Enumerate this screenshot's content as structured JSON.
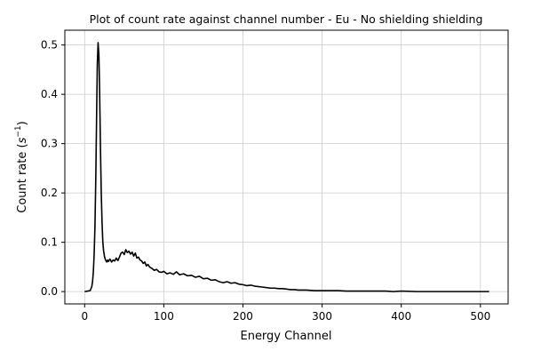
{
  "chart_data": {
    "type": "line",
    "title": "Plot of count rate against channel number - Eu - No shielding shielding",
    "xlabel": "Energy Channel",
    "ylabel_main": "Count rate (",
    "ylabel_unit_base": "s",
    "ylabel_unit_exp": "−1",
    "ylabel_close": ")",
    "xlim": [
      -25,
      535
    ],
    "ylim": [
      -0.025,
      0.53
    ],
    "xticks": [
      0,
      100,
      200,
      300,
      400,
      500
    ],
    "xtick_labels": [
      "0",
      "100",
      "200",
      "300",
      "400",
      "500"
    ],
    "yticks": [
      0.0,
      0.1,
      0.2,
      0.3,
      0.4,
      0.5
    ],
    "ytick_labels": [
      "0.0",
      "0.1",
      "0.2",
      "0.3",
      "0.4",
      "0.5"
    ],
    "grid": true,
    "line_color": "#000000",
    "grid_color": "#cccccc",
    "series": [
      {
        "x": [
          0,
          4,
          7,
          9,
          10,
          11,
          12,
          13,
          14,
          15,
          16,
          17,
          18,
          19,
          20,
          21,
          22,
          23,
          24,
          25,
          26,
          27,
          28,
          29,
          30,
          32,
          34,
          36,
          38,
          40,
          42,
          44,
          46,
          48,
          50,
          52,
          54,
          56,
          58,
          60,
          62,
          64,
          66,
          68,
          70,
          72,
          74,
          76,
          78,
          80,
          82,
          85,
          88,
          91,
          94,
          97,
          100,
          104,
          108,
          112,
          116,
          120,
          125,
          130,
          135,
          140,
          145,
          150,
          155,
          160,
          165,
          170,
          175,
          180,
          185,
          190,
          195,
          200,
          205,
          210,
          215,
          220,
          225,
          230,
          235,
          240,
          245,
          250,
          255,
          260,
          265,
          270,
          280,
          290,
          300,
          310,
          320,
          330,
          340,
          350,
          360,
          370,
          380,
          390,
          400,
          420,
          440,
          460,
          480,
          500,
          511
        ],
        "y": [
          0.0,
          0.001,
          0.002,
          0.01,
          0.02,
          0.04,
          0.075,
          0.13,
          0.22,
          0.34,
          0.46,
          0.505,
          0.48,
          0.4,
          0.29,
          0.2,
          0.14,
          0.1,
          0.082,
          0.072,
          0.066,
          0.062,
          0.06,
          0.064,
          0.061,
          0.066,
          0.06,
          0.064,
          0.062,
          0.068,
          0.063,
          0.07,
          0.078,
          0.08,
          0.075,
          0.085,
          0.079,
          0.082,
          0.076,
          0.08,
          0.072,
          0.078,
          0.068,
          0.07,
          0.064,
          0.062,
          0.057,
          0.06,
          0.052,
          0.055,
          0.05,
          0.047,
          0.043,
          0.045,
          0.04,
          0.039,
          0.041,
          0.036,
          0.038,
          0.035,
          0.04,
          0.034,
          0.036,
          0.032,
          0.033,
          0.029,
          0.031,
          0.026,
          0.027,
          0.023,
          0.024,
          0.02,
          0.018,
          0.02,
          0.017,
          0.018,
          0.015,
          0.014,
          0.012,
          0.013,
          0.011,
          0.01,
          0.009,
          0.008,
          0.007,
          0.007,
          0.006,
          0.006,
          0.005,
          0.004,
          0.004,
          0.003,
          0.003,
          0.002,
          0.002,
          0.002,
          0.002,
          0.001,
          0.001,
          0.001,
          0.001,
          0.001,
          0.001,
          0.0,
          0.001,
          0.0,
          0.0,
          0.0,
          0.0,
          0.0,
          0.0
        ]
      }
    ]
  }
}
